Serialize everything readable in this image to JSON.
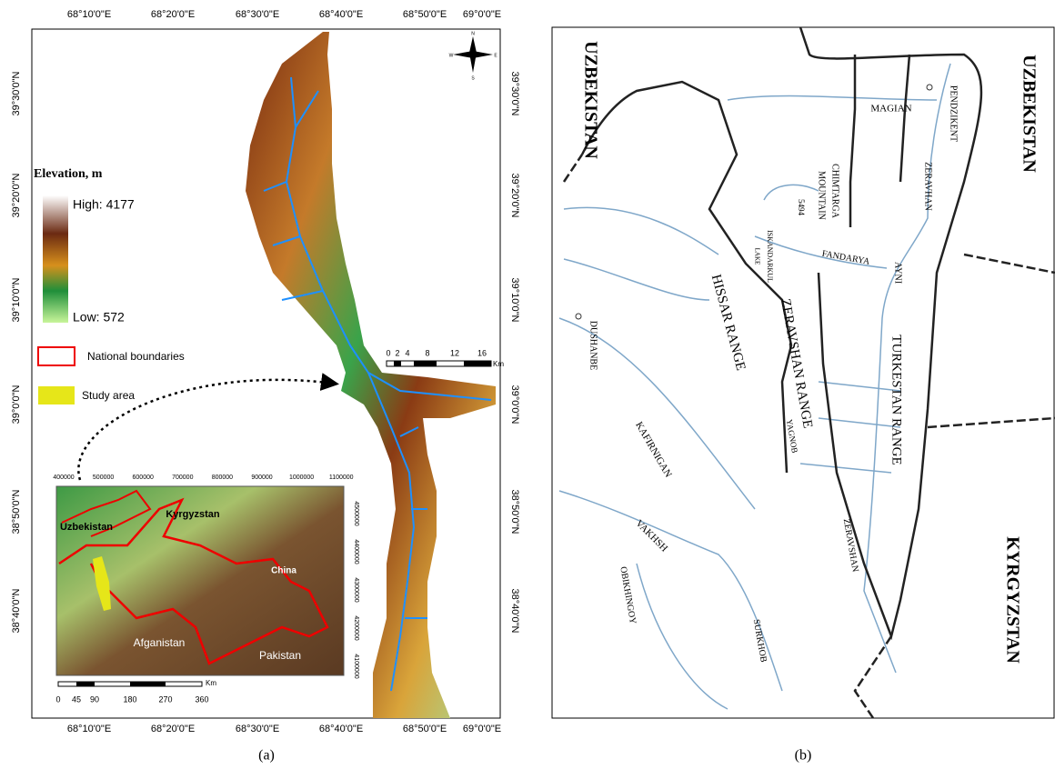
{
  "panel_a": {
    "top_ticks": [
      "68°10'0\"E",
      "68°20'0\"E",
      "68°30'0\"E",
      "68°40'0\"E",
      "68°50'0\"E",
      "69°0'0\"E"
    ],
    "bottom_ticks": [
      "68°10'0\"E",
      "68°20'0\"E",
      "68°30'0\"E",
      "68°40'0\"E",
      "68°50'0\"E",
      "69°0'0\"E"
    ],
    "left_ticks": [
      "39°30'0\"N",
      "39°20'0\"N",
      "39°10'0\"N",
      "39°0'0\"N",
      "38°50'0\"N",
      "38°40'0\"N"
    ],
    "right_ticks": [
      "39°30'0\"N",
      "39°20'0\"N",
      "39°10'0\"N",
      "39°0'0\"N",
      "38°50'0\"N",
      "38°40'0\"N"
    ],
    "legend": {
      "title": "Elevation, m",
      "high": "High: 4177",
      "low": "Low: 572",
      "boundaries": "National boundaries",
      "study_area": "Study area"
    },
    "scale_bar": {
      "labels": [
        "0",
        "2",
        "4",
        "8",
        "12",
        "16"
      ],
      "unit": "Km"
    },
    "compass": [
      "N",
      "S",
      "E",
      "W"
    ],
    "inset": {
      "x_ticks": [
        "400000",
        "500000",
        "600000",
        "700000",
        "800000",
        "900000",
        "1000000",
        "1100000"
      ],
      "y_ticks": [
        "4500000",
        "4400000",
        "4300000",
        "4200000",
        "4100000"
      ],
      "countries": [
        "Uzbekistan",
        "Kyrgyzstan",
        "China",
        "Afganistan",
        "Pakistan"
      ],
      "scale_labels": [
        "0",
        "45",
        "90",
        "180",
        "270",
        "360"
      ],
      "scale_unit": "Km"
    },
    "caption": "(a)"
  },
  "panel_b": {
    "labels": [
      "UZBEKISTAN",
      "UZBEKISTAN",
      "KYRGYZSTAN",
      "MAGIAN",
      "PENDZIKENT",
      "ZERAVHAN",
      "CHIMTARGA",
      "MOUNTAIN",
      "5494",
      "ISKANDARKUL",
      "LAKE",
      "FANDARYA",
      "AYNI",
      "HISSAR RANGE",
      "ZERAVSHAN RANGE",
      "TURKESTAN RANGE",
      "DUSHANBE",
      "KAFIRNIGAN",
      "YAGNOB",
      "VAKHSH",
      "OBIKHINGOY",
      "SURKHOB",
      "ZERAVSHAN"
    ],
    "caption": "(b)"
  }
}
